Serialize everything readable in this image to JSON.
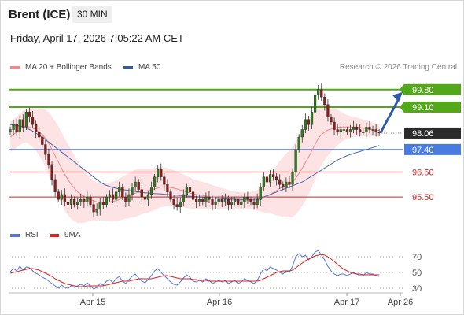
{
  "header": {
    "title": "Brent (ICE)",
    "timeframe": "30 MIN",
    "timestamp": "Friday, April 17, 2026 7:05:22 AM CET",
    "credit": "Research © 2026 Trading Central"
  },
  "legend_main": [
    {
      "label": "MA 20 + Bollinger Bands",
      "color": "#f08a8a"
    },
    {
      "label": "MA 50",
      "color": "#3a5a9a"
    }
  ],
  "legend_rsi": [
    {
      "label": "RSI",
      "color": "#5577dd"
    },
    {
      "label": "9MA",
      "color": "#dd2222"
    }
  ],
  "chart_data": [
    {
      "type": "candlestick",
      "title": "Brent (ICE)",
      "ylim": [
        94.4,
        100.55
      ],
      "x_labels": [
        "Apr 15",
        "Apr 16",
        "Apr 17",
        "Apr 26"
      ],
      "current_price": {
        "value": 98.06,
        "label": "98.06"
      },
      "resistance_levels": [
        {
          "value": 99.8,
          "label": "99.80"
        },
        {
          "value": 99.1,
          "label": "99.10"
        }
      ],
      "support_levels": [
        {
          "value": 97.4,
          "label": "97.40",
          "color": "#4a7be0"
        },
        {
          "value": 96.5,
          "label": "96.50",
          "color": "#d22222"
        },
        {
          "value": 95.5,
          "label": "95.50",
          "color": "#d22222"
        }
      ],
      "close": [
        98.2,
        98.4,
        98.1,
        98.6,
        98.3,
        98.9,
        98.7,
        98.4,
        98.1,
        97.9,
        97.6,
        97.2,
        96.8,
        96.2,
        95.7,
        95.4,
        95.6,
        95.3,
        95.2,
        95.4,
        95.2,
        95.3,
        95.4,
        95.3,
        95.5,
        95.2,
        94.9,
        95.0,
        95.3,
        95.2,
        95.5,
        95.6,
        95.4,
        95.7,
        95.9,
        95.5,
        95.3,
        95.6,
        95.9,
        96.1,
        95.8,
        95.5,
        95.4,
        95.6,
        95.9,
        96.3,
        96.6,
        96.3,
        96.0,
        95.7,
        95.4,
        95.2,
        95.1,
        95.3,
        95.6,
        95.9,
        95.7,
        95.4,
        95.3,
        95.4,
        95.3,
        95.5,
        95.4,
        95.2,
        95.3,
        95.4,
        95.3,
        95.4,
        95.2,
        95.3,
        95.4,
        95.2,
        95.3,
        95.5,
        95.4,
        95.3,
        95.2,
        95.4,
        95.9,
        96.3,
        96.1,
        96.4,
        96.3,
        96.2,
        96.0,
        95.9,
        96.1,
        96.0,
        96.5,
        97.4,
        97.9,
        98.2,
        98.6,
        98.4,
        98.9,
        99.6,
        99.8,
        99.5,
        99.2,
        98.7,
        98.5,
        98.2,
        98.1,
        98.2,
        98.2,
        98.1,
        98.2,
        98.3,
        98.2,
        98.1,
        98.1,
        98.3,
        98.2,
        98.2,
        98.1,
        98.06
      ],
      "ma20": [
        97.9,
        98.0,
        98.1,
        98.2,
        98.3,
        98.35,
        98.3,
        98.25,
        98.2,
        98.1,
        98.0,
        97.85,
        97.65,
        97.4,
        97.15,
        96.9,
        96.65,
        96.4,
        96.2,
        96.0,
        95.85,
        95.7,
        95.6,
        95.5,
        95.45,
        95.4,
        95.35,
        95.3,
        95.3,
        95.3,
        95.3,
        95.3,
        95.32,
        95.35,
        95.4,
        95.45,
        95.5,
        95.55,
        95.6,
        95.65,
        95.7,
        95.72,
        95.74,
        95.76,
        95.78,
        95.82,
        95.86,
        95.9,
        95.9,
        95.9,
        95.88,
        95.85,
        95.82,
        95.78,
        95.74,
        95.7,
        95.66,
        95.62,
        95.6,
        95.58,
        95.56,
        95.54,
        95.52,
        95.5,
        95.48,
        95.46,
        95.44,
        95.42,
        95.4,
        95.38,
        95.37,
        95.36,
        95.35,
        95.35,
        95.35,
        95.35,
        95.35,
        95.36,
        95.4,
        95.45,
        95.52,
        95.6,
        95.68,
        95.76,
        95.84,
        95.9,
        95.96,
        96.02,
        96.1,
        96.25,
        96.45,
        96.65,
        96.88,
        97.1,
        97.35,
        97.6,
        97.85,
        98.0,
        98.1,
        98.18,
        98.22,
        98.25,
        98.28,
        98.3,
        98.3,
        98.3,
        98.3,
        98.3,
        98.3,
        98.28,
        98.26,
        98.24,
        98.22,
        98.2,
        98.18,
        98.16
      ],
      "ma50": [
        98.4,
        98.38,
        98.36,
        98.34,
        98.3,
        98.26,
        98.2,
        98.14,
        98.06,
        97.98,
        97.9,
        97.8,
        97.7,
        97.6,
        97.5,
        97.4,
        97.3,
        97.2,
        97.1,
        97.0,
        96.9,
        96.8,
        96.7,
        96.6,
        96.5,
        96.4,
        96.3,
        96.2,
        96.1,
        96.02,
        95.96,
        95.92,
        95.88,
        95.85,
        95.82,
        95.8,
        95.78,
        95.76,
        95.74,
        95.72,
        95.7,
        95.68,
        95.67,
        95.66,
        95.65,
        95.64,
        95.63,
        95.62,
        95.61,
        95.6,
        95.59,
        95.58,
        95.57,
        95.56,
        95.55,
        95.54,
        95.53,
        95.52,
        95.51,
        95.5,
        95.49,
        95.48,
        95.47,
        95.46,
        95.45,
        95.44,
        95.43,
        95.43,
        95.42,
        95.42,
        95.41,
        95.41,
        95.4,
        95.4,
        95.4,
        95.4,
        95.4,
        95.42,
        95.46,
        95.5,
        95.55,
        95.6,
        95.65,
        95.7,
        95.75,
        95.8,
        95.85,
        95.9,
        95.95,
        96.0,
        96.05,
        96.1,
        96.18,
        96.26,
        96.34,
        96.42,
        96.5,
        96.58,
        96.66,
        96.74,
        96.82,
        96.9,
        96.98,
        97.04,
        97.1,
        97.16,
        97.2,
        97.24,
        97.28,
        97.32,
        97.36,
        97.4,
        97.44,
        97.48,
        97.52,
        97.56
      ],
      "bb_width": [
        0.6,
        0.61,
        0.62,
        0.63,
        0.64,
        0.66,
        0.7,
        0.76,
        0.84,
        0.94,
        1.04,
        1.14,
        1.24,
        1.32,
        1.38,
        1.42,
        1.44,
        1.44,
        1.42,
        1.38,
        1.32,
        1.24,
        1.14,
        1.04,
        0.94,
        0.86,
        0.8,
        0.76,
        0.74,
        0.74,
        0.76,
        0.78,
        0.8,
        0.82,
        0.84,
        0.86,
        0.88,
        0.9,
        0.92,
        0.94,
        0.94,
        0.92,
        0.9,
        0.88,
        0.86,
        0.84,
        0.82,
        0.8,
        0.78,
        0.76,
        0.74,
        0.72,
        0.7,
        0.68,
        0.66,
        0.64,
        0.62,
        0.6,
        0.58,
        0.56,
        0.54,
        0.52,
        0.5,
        0.48,
        0.46,
        0.44,
        0.42,
        0.4,
        0.38,
        0.36,
        0.35,
        0.34,
        0.34,
        0.34,
        0.34,
        0.36,
        0.38,
        0.42,
        0.48,
        0.56,
        0.66,
        0.76,
        0.88,
        1.0,
        1.1,
        1.2,
        1.28,
        1.34,
        1.4,
        1.46,
        1.5,
        1.52,
        1.52,
        1.5,
        1.46,
        1.4,
        1.32,
        1.22,
        1.12,
        1.02,
        0.92,
        0.82,
        0.72,
        0.62,
        0.54,
        0.48,
        0.44,
        0.4,
        0.38,
        0.36,
        0.34,
        0.32,
        0.3,
        0.28,
        0.27,
        0.26
      ],
      "forecast": {
        "from": 98.06,
        "to": 99.8
      }
    },
    {
      "type": "line",
      "title": "RSI",
      "ylim": [
        24,
        84
      ],
      "yticks": [
        70,
        50,
        30
      ],
      "series": [
        {
          "name": "RSI",
          "color": "#5577dd",
          "values": [
            51,
            55,
            52,
            58,
            53,
            57,
            56,
            52,
            49,
            47,
            44,
            42,
            39,
            36,
            33,
            30,
            34,
            31,
            30,
            33,
            31,
            33,
            35,
            33,
            37,
            33,
            29,
            31,
            36,
            34,
            39,
            41,
            37,
            42,
            45,
            39,
            36,
            41,
            45,
            48,
            43,
            39,
            37,
            41,
            46,
            52,
            55,
            50,
            46,
            42,
            38,
            35,
            34,
            38,
            43,
            47,
            44,
            39,
            38,
            40,
            38,
            42,
            40,
            36,
            38,
            40,
            38,
            40,
            36,
            38,
            40,
            36,
            38,
            42,
            40,
            38,
            36,
            40,
            48,
            55,
            52,
            57,
            55,
            53,
            50,
            48,
            52,
            50,
            58,
            70,
            74,
            70,
            72,
            66,
            70,
            76,
            78,
            72,
            66,
            58,
            52,
            48,
            46,
            48,
            48,
            46,
            48,
            50,
            48,
            46,
            46,
            50,
            48,
            48,
            46,
            45
          ]
        },
        {
          "name": "9MA",
          "color": "#dd2222",
          "values": [
            49,
            50,
            51,
            52,
            53,
            54,
            55,
            55,
            54,
            53,
            51,
            49,
            47,
            45,
            42,
            40,
            38,
            36,
            35,
            34,
            33,
            32,
            32,
            32,
            33,
            33,
            33,
            33,
            33,
            33,
            34,
            35,
            36,
            37,
            38,
            39,
            39,
            39,
            40,
            41,
            42,
            42,
            42,
            42,
            42,
            43,
            44,
            45,
            46,
            46,
            45,
            44,
            43,
            42,
            42,
            42,
            42,
            41,
            41,
            40,
            40,
            40,
            39,
            39,
            39,
            39,
            39,
            39,
            39,
            39,
            39,
            39,
            39,
            39,
            39,
            39,
            39,
            39,
            40,
            42,
            44,
            46,
            48,
            50,
            51,
            52,
            52,
            52,
            53,
            56,
            59,
            62,
            65,
            67,
            69,
            71,
            72,
            73,
            72,
            70,
            67,
            64,
            60,
            57,
            54,
            52,
            50,
            49,
            48,
            48,
            47,
            47,
            47,
            47,
            47,
            47
          ]
        }
      ]
    }
  ]
}
